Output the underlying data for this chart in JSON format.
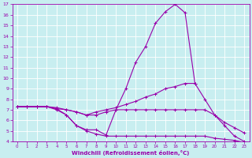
{
  "xlabel": "Windchill (Refroidissement éolien,°C)",
  "bg_color": "#c8eef0",
  "line_color": "#9900aa",
  "grid_color": "#ffffff",
  "xlim": [
    -0.5,
    23.5
  ],
  "ylim": [
    4,
    17
  ],
  "yticks": [
    4,
    5,
    6,
    7,
    8,
    9,
    10,
    11,
    12,
    13,
    14,
    15,
    16,
    17
  ],
  "xticks": [
    0,
    1,
    2,
    3,
    4,
    5,
    6,
    7,
    8,
    9,
    10,
    11,
    12,
    13,
    14,
    15,
    16,
    17,
    18,
    19,
    20,
    21,
    22,
    23
  ],
  "lines": [
    {
      "x": [
        0,
        1,
        2,
        3,
        4,
        5,
        6,
        7,
        8,
        9,
        10,
        11,
        12,
        13,
        14,
        15,
        16,
        17,
        18,
        19,
        20,
        21,
        22,
        23
      ],
      "y": [
        7.3,
        7.3,
        7.3,
        7.3,
        7.1,
        6.5,
        5.5,
        5.1,
        5.1,
        4.6,
        7.0,
        9.0,
        11.5,
        13.0,
        15.2,
        16.3,
        17.0,
        16.2,
        9.5,
        null,
        null,
        null,
        null,
        3.7
      ]
    },
    {
      "x": [
        0,
        1,
        2,
        3,
        4,
        5,
        6,
        7,
        8,
        9,
        10,
        11,
        12,
        13,
        14,
        15,
        16,
        17,
        18,
        19,
        20,
        21,
        22,
        23
      ],
      "y": [
        7.3,
        7.3,
        7.3,
        7.3,
        7.1,
        7.0,
        6.8,
        6.5,
        6.8,
        7.0,
        7.2,
        7.5,
        7.8,
        8.2,
        8.5,
        9.0,
        9.2,
        9.5,
        9.5,
        8.0,
        6.5,
        5.5,
        4.5,
        4.0
      ]
    },
    {
      "x": [
        0,
        1,
        2,
        3,
        4,
        5,
        6,
        7,
        8,
        9,
        10,
        11,
        12,
        13,
        14,
        15,
        16,
        17,
        18,
        19,
        20,
        21,
        22,
        23
      ],
      "y": [
        7.3,
        7.3,
        7.3,
        7.3,
        7.2,
        7.0,
        6.8,
        6.5,
        6.5,
        6.8,
        7.0,
        7.0,
        7.0,
        7.0,
        7.0,
        7.0,
        7.0,
        7.0,
        7.0,
        7.0,
        6.5,
        5.8,
        5.3,
        4.8
      ]
    },
    {
      "x": [
        0,
        1,
        2,
        3,
        4,
        5,
        6,
        7,
        8,
        9,
        10,
        11,
        12,
        13,
        14,
        15,
        16,
        17,
        18,
        19,
        20,
        21,
        22,
        23
      ],
      "y": [
        7.3,
        7.3,
        7.3,
        7.3,
        7.0,
        6.5,
        5.5,
        5.0,
        4.7,
        4.5,
        4.5,
        4.5,
        4.5,
        4.5,
        4.5,
        4.5,
        4.5,
        4.5,
        4.5,
        4.5,
        4.3,
        4.2,
        4.1,
        3.9
      ]
    }
  ]
}
